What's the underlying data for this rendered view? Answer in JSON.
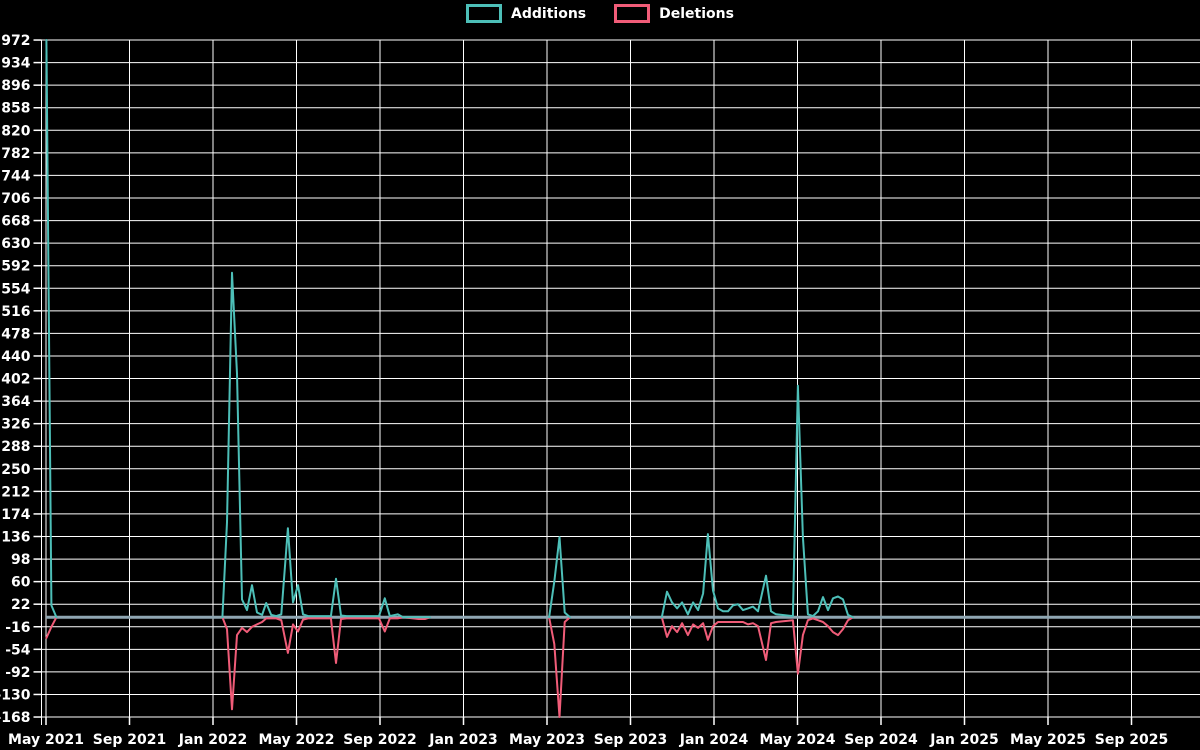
{
  "legend": {
    "items": [
      {
        "label": "Additions",
        "color": "#4dbfb8"
      },
      {
        "label": "Deletions",
        "color": "#f05c78"
      }
    ]
  },
  "chart_data": {
    "type": "line",
    "title": "",
    "description": "Weekly code additions (positive, teal) and deletions (negative, pink) over time",
    "background_color": "#000000",
    "grid": {
      "visible": true,
      "color": "#ffffff"
    },
    "zero_line_color": "#8fa6b2",
    "legend_position": "top-center",
    "x_axis": {
      "tick_labels": [
        "May 2021",
        "Sep 2021",
        "Jan 2022",
        "May 2022",
        "Sep 2022",
        "Jan 2023",
        "May 2023",
        "Sep 2023",
        "Jan 2024",
        "May 2024",
        "Sep 2024",
        "Jan 2025",
        "May 2025",
        "Sep 2025"
      ],
      "tick_month_offsets": [
        0,
        4,
        8,
        12,
        16,
        20,
        24,
        28,
        32,
        36,
        40,
        44,
        48,
        52
      ],
      "range_start": "May 2021",
      "range_end": "Oct 2025"
    },
    "y_axis": {
      "min": -168,
      "max": 972,
      "step": 38,
      "ticks": [
        972,
        934,
        896,
        858,
        820,
        782,
        744,
        706,
        668,
        630,
        592,
        554,
        516,
        478,
        440,
        402,
        364,
        326,
        288,
        250,
        212,
        174,
        136,
        98,
        60,
        22,
        -16,
        -54,
        -92,
        -130,
        -168
      ]
    },
    "series": [
      {
        "name": "Additions",
        "color": "#4dbfb8",
        "sign": "positive"
      },
      {
        "name": "Deletions",
        "color": "#f05c78",
        "sign": "negative"
      }
    ],
    "points_format": [
      "months_since_May_2021",
      "additions",
      "deletions"
    ],
    "points_note": "sparse weekly points; unlisted spans are zero for both series",
    "points": [
      [
        0.02,
        972,
        -35
      ],
      [
        0.26,
        20,
        -16
      ],
      [
        0.5,
        0,
        0
      ],
      [
        8.45,
        0,
        0
      ],
      [
        8.67,
        160,
        -20
      ],
      [
        8.91,
        580,
        -155
      ],
      [
        9.15,
        410,
        -30
      ],
      [
        9.39,
        30,
        -18
      ],
      [
        9.63,
        12,
        -25
      ],
      [
        9.87,
        54,
        -16
      ],
      [
        10.11,
        8,
        -12
      ],
      [
        10.35,
        4,
        -8
      ],
      [
        10.55,
        24,
        -2
      ],
      [
        10.79,
        4,
        -2
      ],
      [
        11.03,
        2,
        -2
      ],
      [
        11.27,
        5,
        -5
      ],
      [
        11.59,
        150,
        -60
      ],
      [
        11.83,
        25,
        -12
      ],
      [
        12.07,
        54,
        -24
      ],
      [
        12.31,
        5,
        -4
      ],
      [
        12.55,
        2,
        -2
      ],
      [
        13.65,
        2,
        -2
      ],
      [
        13.89,
        65,
        -77
      ],
      [
        14.13,
        3,
        -3
      ],
      [
        14.4,
        2,
        -2
      ],
      [
        15.95,
        2,
        -2
      ],
      [
        16.23,
        32,
        -24
      ],
      [
        16.47,
        2,
        -2
      ],
      [
        16.85,
        5,
        -2
      ],
      [
        17.1,
        0,
        0
      ],
      [
        17.85,
        0,
        -3
      ],
      [
        18.15,
        0,
        -3
      ],
      [
        18.4,
        0,
        0
      ],
      [
        24.1,
        0,
        0
      ],
      [
        24.35,
        60,
        -45
      ],
      [
        24.6,
        135,
        -168
      ],
      [
        24.85,
        8,
        -8
      ],
      [
        25.1,
        0,
        0
      ],
      [
        29.5,
        0,
        0
      ],
      [
        29.75,
        43,
        -33
      ],
      [
        29.99,
        25,
        -15
      ],
      [
        30.23,
        15,
        -25
      ],
      [
        30.47,
        25,
        -10
      ],
      [
        30.75,
        5,
        -30
      ],
      [
        31.0,
        25,
        -12
      ],
      [
        31.24,
        12,
        -18
      ],
      [
        31.48,
        40,
        -10
      ],
      [
        31.71,
        140,
        -38
      ],
      [
        31.95,
        45,
        -15
      ],
      [
        32.19,
        15,
        -8
      ],
      [
        32.43,
        10,
        -8
      ],
      [
        32.67,
        10,
        -8
      ],
      [
        32.91,
        20,
        -8
      ],
      [
        33.15,
        22,
        -8
      ],
      [
        33.39,
        12,
        -8
      ],
      [
        33.63,
        15,
        -12
      ],
      [
        33.87,
        18,
        -10
      ],
      [
        34.11,
        10,
        -15
      ],
      [
        34.49,
        70,
        -72
      ],
      [
        34.73,
        10,
        -10
      ],
      [
        34.97,
        5,
        -8
      ],
      [
        35.78,
        2,
        -5
      ],
      [
        36.02,
        390,
        -95
      ],
      [
        36.26,
        135,
        -30
      ],
      [
        36.5,
        5,
        -5
      ],
      [
        36.74,
        2,
        -2
      ],
      [
        36.98,
        10,
        -5
      ],
      [
        37.22,
        34,
        -8
      ],
      [
        37.46,
        12,
        -15
      ],
      [
        37.7,
        32,
        -25
      ],
      [
        37.94,
        35,
        -30
      ],
      [
        38.18,
        30,
        -20
      ],
      [
        38.42,
        4,
        -5
      ],
      [
        38.66,
        0,
        0
      ],
      [
        55.3,
        0,
        0
      ]
    ]
  }
}
